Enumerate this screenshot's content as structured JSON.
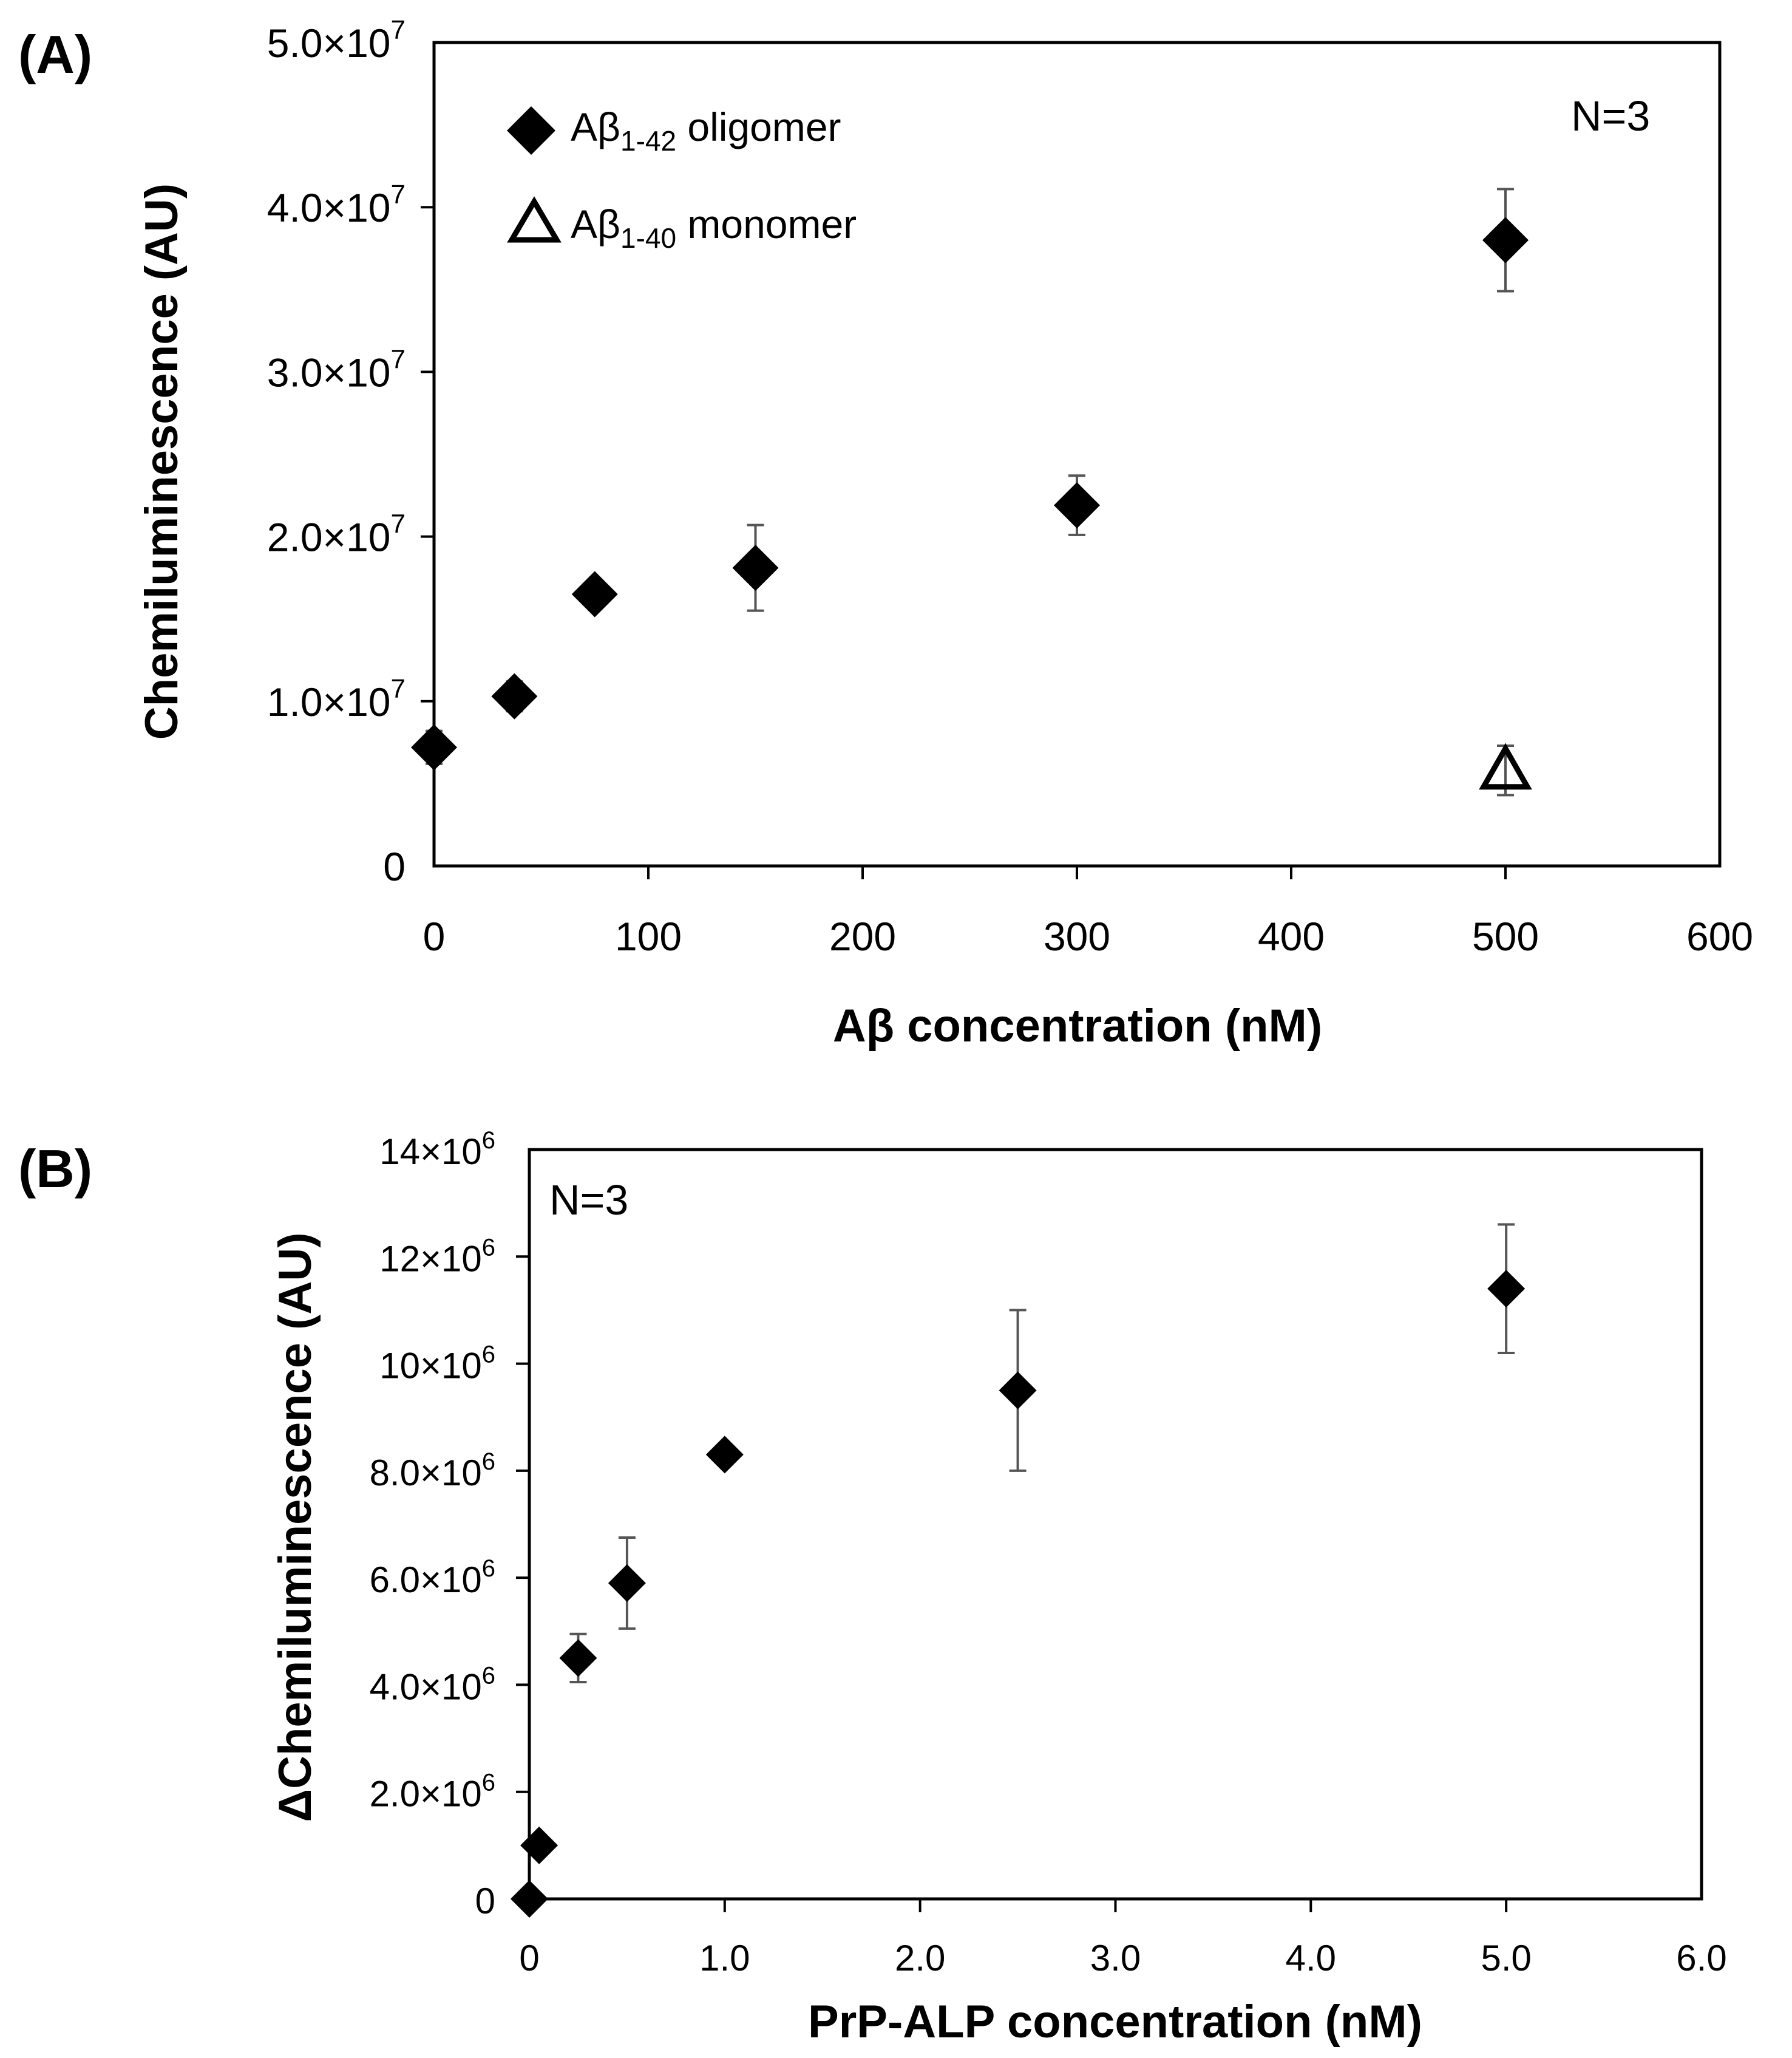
{
  "chart_data": [
    {
      "type": "scatter",
      "panel_label": "(A)",
      "title": "",
      "xlabel": "Aβ concentration (nM)",
      "ylabel": "Chemiluminescence (AU)",
      "xlim": [
        0,
        600
      ],
      "ylim": [
        0,
        50000000
      ],
      "x_ticks": [
        0,
        100,
        200,
        300,
        400,
        500,
        600
      ],
      "x_tick_labels": [
        "0",
        "100",
        "200",
        "300",
        "400",
        "500",
        "600"
      ],
      "y_ticks": [
        0,
        10000000,
        20000000,
        30000000,
        40000000,
        50000000
      ],
      "y_tick_labels": [
        {
          "base": "0",
          "exp": ""
        },
        {
          "base": "1.0×10",
          "exp": "7"
        },
        {
          "base": "2.0×10",
          "exp": "7"
        },
        {
          "base": "3.0×10",
          "exp": "7"
        },
        {
          "base": "4.0×10",
          "exp": "7"
        },
        {
          "base": "5.0×10",
          "exp": "7"
        }
      ],
      "annotation": "N=3",
      "grid": false,
      "legend_position": "top-left",
      "series": [
        {
          "name": "Aβ1-42 oligomer",
          "legend_main": "Aβ",
          "legend_sub": "1-42",
          "legend_rest": " oligomer",
          "marker": "filled-diamond",
          "x": [
            0,
            37.5,
            75,
            150,
            300,
            500
          ],
          "y": [
            7200000,
            10300000,
            16500000,
            18100000,
            21900000,
            38000000
          ],
          "err": [
            1000000,
            900000,
            800000,
            2600000,
            1800000,
            3100000
          ]
        },
        {
          "name": "Aβ1-40 monomer",
          "legend_main": "Aβ",
          "legend_sub": "1-40",
          "legend_rest": " monomer",
          "marker": "open-triangle",
          "x": [
            500
          ],
          "y": [
            5800000
          ],
          "err": [
            1500000
          ]
        }
      ]
    },
    {
      "type": "scatter",
      "panel_label": "(B)",
      "title": "",
      "xlabel": "PrP-ALP concentration (nM)",
      "ylabel": "ΔChemiluminescence (AU)",
      "xlim": [
        0,
        6
      ],
      "ylim": [
        0,
        14000000
      ],
      "x_ticks": [
        0,
        1,
        2,
        3,
        4,
        5,
        6
      ],
      "x_tick_labels": [
        "0",
        "1.0",
        "2.0",
        "3.0",
        "4.0",
        "5.0",
        "6.0"
      ],
      "y_ticks": [
        0,
        2000000,
        4000000,
        6000000,
        8000000,
        10000000,
        12000000,
        14000000
      ],
      "y_tick_labels": [
        {
          "base": "0",
          "exp": ""
        },
        {
          "base": "2.0×10",
          "exp": "6"
        },
        {
          "base": "4.0×10",
          "exp": "6"
        },
        {
          "base": "6.0×10",
          "exp": "6"
        },
        {
          "base": "8.0×10",
          "exp": "6"
        },
        {
          "base": "10×10",
          "exp": "6"
        },
        {
          "base": "12×10",
          "exp": "6"
        },
        {
          "base": "14×10",
          "exp": "6"
        }
      ],
      "annotation": "N=3",
      "grid": false,
      "series": [
        {
          "name": "PrP-ALP",
          "marker": "filled-diamond",
          "x": [
            0,
            0.05,
            0.25,
            0.5,
            1.0,
            2.5,
            5.0
          ],
          "y": [
            0,
            1000000,
            4500000,
            5900000,
            8300000,
            9500000,
            11400000
          ],
          "err": [
            0,
            0,
            450000,
            850000,
            0,
            1500000,
            1200000
          ]
        }
      ]
    }
  ]
}
